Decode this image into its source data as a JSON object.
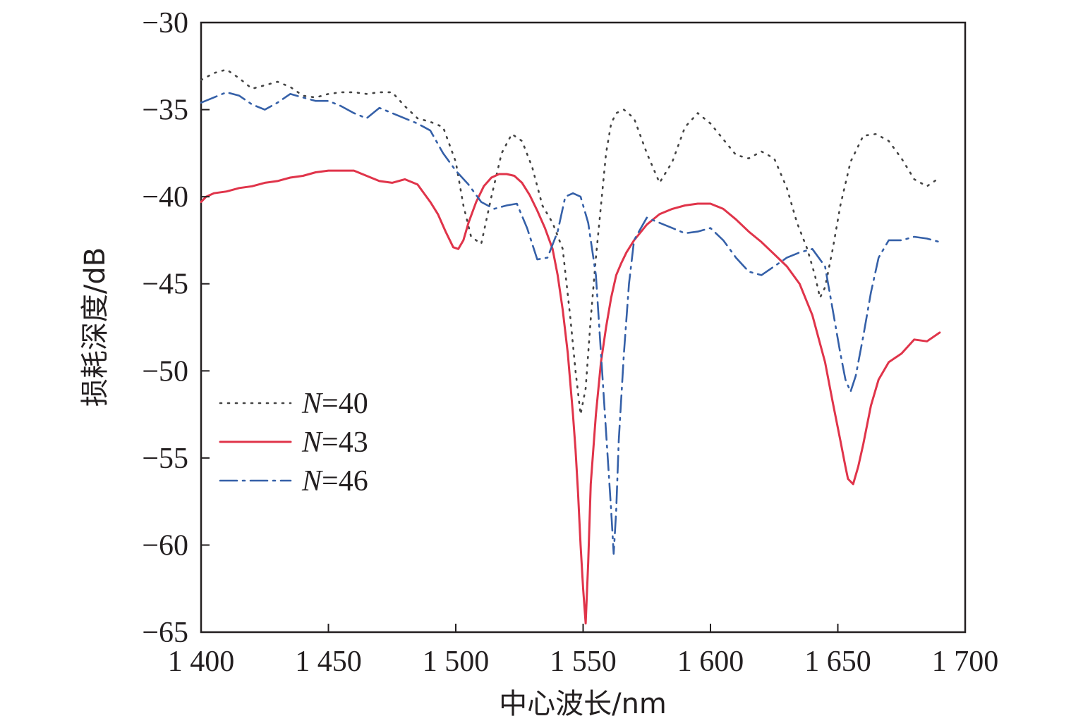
{
  "chart_data": {
    "type": "line",
    "title": "",
    "xlabel": "中心波长/nm",
    "ylabel": "损耗深度/dB",
    "xlim": [
      1400,
      1700
    ],
    "ylim": [
      -65,
      -30
    ],
    "xticks": [
      1400,
      1450,
      1500,
      1550,
      1600,
      1650,
      1700
    ],
    "xtick_labels": [
      "1 400",
      "1 450",
      "1 500",
      "1 550",
      "1 600",
      "1 650",
      "1 700"
    ],
    "yticks": [
      -30,
      -35,
      -40,
      -45,
      -50,
      -55,
      -60,
      -65
    ],
    "ytick_labels": [
      "−30",
      "−35",
      "−40",
      "−45",
      "−50",
      "−55",
      "−60",
      "−65"
    ],
    "grid": false,
    "legend_position": "lower-left",
    "series": [
      {
        "name": "N=40",
        "name_italic": "N",
        "name_rest": "=40",
        "color": "#444444",
        "dash": "dotted",
        "x": [
          1400,
          1405,
          1410,
          1415,
          1420,
          1425,
          1430,
          1435,
          1440,
          1445,
          1450,
          1455,
          1460,
          1465,
          1470,
          1475,
          1480,
          1485,
          1490,
          1495,
          1500,
          1503,
          1506,
          1510,
          1514,
          1518,
          1522,
          1526,
          1530,
          1534,
          1538,
          1542,
          1545,
          1547,
          1549,
          1551,
          1553,
          1555,
          1557,
          1559,
          1561,
          1563,
          1566,
          1570,
          1575,
          1580,
          1585,
          1590,
          1595,
          1600,
          1605,
          1610,
          1615,
          1620,
          1625,
          1630,
          1634,
          1638,
          1641,
          1643,
          1645,
          1648,
          1651,
          1655,
          1660,
          1665,
          1670,
          1675,
          1680,
          1685,
          1690
        ],
        "y": [
          -33.3,
          -32.9,
          -32.7,
          -33.2,
          -33.8,
          -33.6,
          -33.4,
          -33.7,
          -34.2,
          -34.3,
          -34.1,
          -34.0,
          -34.0,
          -34.1,
          -34.0,
          -34.0,
          -34.8,
          -35.5,
          -35.7,
          -36.0,
          -38.0,
          -40.5,
          -42.3,
          -42.7,
          -40.0,
          -37.5,
          -36.4,
          -36.8,
          -38.3,
          -40.5,
          -41.5,
          -43.0,
          -47.0,
          -50.0,
          -52.5,
          -51.0,
          -47.0,
          -43.5,
          -40.5,
          -37.5,
          -35.8,
          -35.2,
          -35.0,
          -35.5,
          -37.5,
          -39.2,
          -38.0,
          -36.0,
          -35.2,
          -35.8,
          -36.7,
          -37.6,
          -37.8,
          -37.4,
          -37.8,
          -39.5,
          -41.5,
          -43.0,
          -44.5,
          -45.8,
          -45.2,
          -43.0,
          -40.5,
          -38.0,
          -36.5,
          -36.4,
          -36.8,
          -37.8,
          -39.0,
          -39.4,
          -38.9
        ]
      },
      {
        "name": "N=43",
        "name_italic": "N",
        "name_rest": "=43",
        "color": "#e0344a",
        "dash": "solid",
        "x": [
          1400,
          1402,
          1405,
          1410,
          1415,
          1420,
          1425,
          1430,
          1435,
          1440,
          1445,
          1450,
          1455,
          1460,
          1465,
          1470,
          1475,
          1480,
          1485,
          1490,
          1493,
          1496,
          1499,
          1501,
          1503,
          1505,
          1508,
          1511,
          1514,
          1517,
          1520,
          1523,
          1526,
          1529,
          1532,
          1535,
          1538,
          1540,
          1542,
          1544,
          1546,
          1547,
          1548,
          1549,
          1550,
          1551,
          1552,
          1553,
          1555,
          1557,
          1559,
          1561,
          1563,
          1565,
          1567,
          1570,
          1575,
          1580,
          1585,
          1590,
          1595,
          1600,
          1605,
          1610,
          1615,
          1620,
          1625,
          1630,
          1635,
          1640,
          1645,
          1648,
          1651,
          1653,
          1654,
          1656,
          1658,
          1660,
          1663,
          1666,
          1670,
          1675,
          1680,
          1685,
          1690
        ],
        "y": [
          -40.3,
          -40.0,
          -39.8,
          -39.7,
          -39.5,
          -39.4,
          -39.2,
          -39.1,
          -38.9,
          -38.8,
          -38.6,
          -38.5,
          -38.5,
          -38.5,
          -38.8,
          -39.1,
          -39.2,
          -39.0,
          -39.3,
          -40.3,
          -41.0,
          -42.0,
          -42.9,
          -43.0,
          -42.5,
          -41.5,
          -40.3,
          -39.4,
          -38.9,
          -38.7,
          -38.7,
          -38.8,
          -39.2,
          -39.9,
          -40.8,
          -41.8,
          -43.0,
          -44.5,
          -46.5,
          -49.0,
          -52.5,
          -54.5,
          -57.0,
          -60.0,
          -62.5,
          -64.5,
          -61.0,
          -56.5,
          -52.5,
          -49.5,
          -47.5,
          -45.8,
          -44.5,
          -43.8,
          -43.2,
          -42.5,
          -41.6,
          -41.0,
          -40.7,
          -40.5,
          -40.4,
          -40.4,
          -40.7,
          -41.3,
          -42.0,
          -42.6,
          -43.3,
          -44.0,
          -45.0,
          -46.8,
          -49.5,
          -51.8,
          -54.0,
          -55.5,
          -56.2,
          -56.5,
          -55.5,
          -54.2,
          -52.0,
          -50.5,
          -49.5,
          -49.0,
          -48.2,
          -48.3,
          -47.8
        ]
      },
      {
        "name": "N=46",
        "name_italic": "N",
        "name_rest": "=46",
        "color": "#3560a8",
        "dash": "dashdot",
        "x": [
          1400,
          1405,
          1410,
          1415,
          1420,
          1425,
          1430,
          1435,
          1440,
          1445,
          1450,
          1455,
          1460,
          1465,
          1470,
          1475,
          1480,
          1485,
          1490,
          1495,
          1500,
          1505,
          1510,
          1515,
          1520,
          1524,
          1528,
          1532,
          1536,
          1540,
          1543,
          1546,
          1549,
          1552,
          1555,
          1557,
          1559,
          1561,
          1562,
          1563,
          1564,
          1566,
          1568,
          1570,
          1575,
          1580,
          1585,
          1590,
          1595,
          1600,
          1605,
          1610,
          1615,
          1620,
          1625,
          1630,
          1635,
          1640,
          1645,
          1648,
          1651,
          1653,
          1655,
          1657,
          1660,
          1663,
          1666,
          1670,
          1675,
          1680,
          1685,
          1690
        ],
        "y": [
          -34.6,
          -34.3,
          -34.0,
          -34.2,
          -34.7,
          -35.0,
          -34.6,
          -34.1,
          -34.3,
          -34.5,
          -34.5,
          -34.8,
          -35.2,
          -35.5,
          -34.9,
          -35.2,
          -35.5,
          -35.8,
          -36.2,
          -37.5,
          -38.5,
          -39.3,
          -40.3,
          -40.7,
          -40.5,
          -40.4,
          -41.8,
          -43.6,
          -43.5,
          -42.0,
          -40.0,
          -39.8,
          -40.0,
          -41.5,
          -44.5,
          -49.0,
          -53.5,
          -58.0,
          -60.5,
          -58.0,
          -54.0,
          -49.0,
          -45.0,
          -42.5,
          -41.2,
          -41.5,
          -41.8,
          -42.1,
          -42.0,
          -41.8,
          -42.5,
          -43.5,
          -44.3,
          -44.5,
          -44.0,
          -43.5,
          -43.2,
          -43.0,
          -44.0,
          -46.5,
          -49.0,
          -50.5,
          -51.2,
          -50.3,
          -48.0,
          -45.5,
          -43.5,
          -42.5,
          -42.5,
          -42.3,
          -42.4,
          -42.6
        ]
      }
    ]
  }
}
